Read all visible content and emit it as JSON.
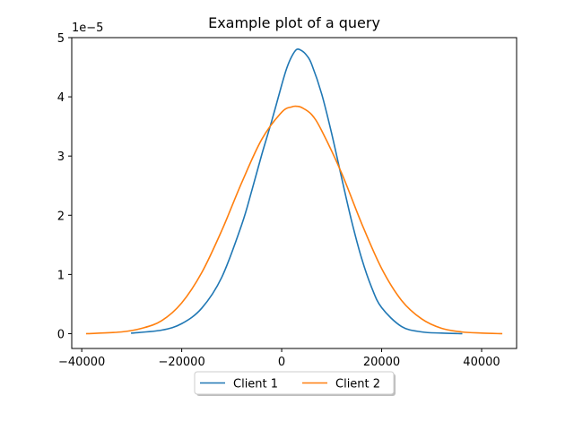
{
  "chart_data": {
    "type": "line",
    "title": "Example plot of a query",
    "xlabel": "",
    "ylabel": "",
    "y_multiplier_label": "1e−5",
    "xlim": [
      -42000,
      47000
    ],
    "ylim": [
      -0.25,
      5.0
    ],
    "x_ticks": [
      -40000,
      -20000,
      0,
      20000,
      40000
    ],
    "x_tick_labels": [
      "−40000",
      "−20000",
      "0",
      "20000",
      "40000"
    ],
    "y_ticks": [
      0,
      1,
      2,
      3,
      4,
      5
    ],
    "y_tick_labels": [
      "0",
      "1",
      "2",
      "3",
      "4",
      "5"
    ],
    "grid": false,
    "legend_position": "bottom-center-outside",
    "series": [
      {
        "name": "Client 1",
        "color": "#1f77b4",
        "x": [
          -30000,
          -24000,
          -20000,
          -16000,
          -12000,
          -8000,
          -6000,
          -4000,
          -2000,
          0,
          1000,
          2000,
          3000,
          4000,
          5000,
          6000,
          8000,
          10000,
          12000,
          14000,
          16000,
          18000,
          20000,
          24000,
          28000,
          32000,
          36000
        ],
        "values": [
          0.01,
          0.06,
          0.17,
          0.43,
          0.95,
          1.84,
          2.41,
          3.02,
          3.59,
          4.2,
          4.48,
          4.68,
          4.8,
          4.78,
          4.7,
          4.55,
          4.05,
          3.38,
          2.63,
          1.9,
          1.27,
          0.78,
          0.44,
          0.12,
          0.03,
          0.01,
          0.0
        ]
      },
      {
        "name": "Client 2",
        "color": "#ff7f0e",
        "x": [
          -39000,
          -32000,
          -28000,
          -24000,
          -20000,
          -16000,
          -12000,
          -8000,
          -4000,
          0,
          2000,
          3000,
          4000,
          6000,
          8000,
          12000,
          16000,
          20000,
          24000,
          28000,
          32000,
          36000,
          40000,
          44000
        ],
        "values": [
          0.0,
          0.03,
          0.09,
          0.22,
          0.52,
          1.03,
          1.74,
          2.55,
          3.28,
          3.74,
          3.83,
          3.84,
          3.82,
          3.7,
          3.43,
          2.71,
          1.86,
          1.1,
          0.56,
          0.25,
          0.09,
          0.03,
          0.01,
          0.0
        ]
      }
    ]
  }
}
